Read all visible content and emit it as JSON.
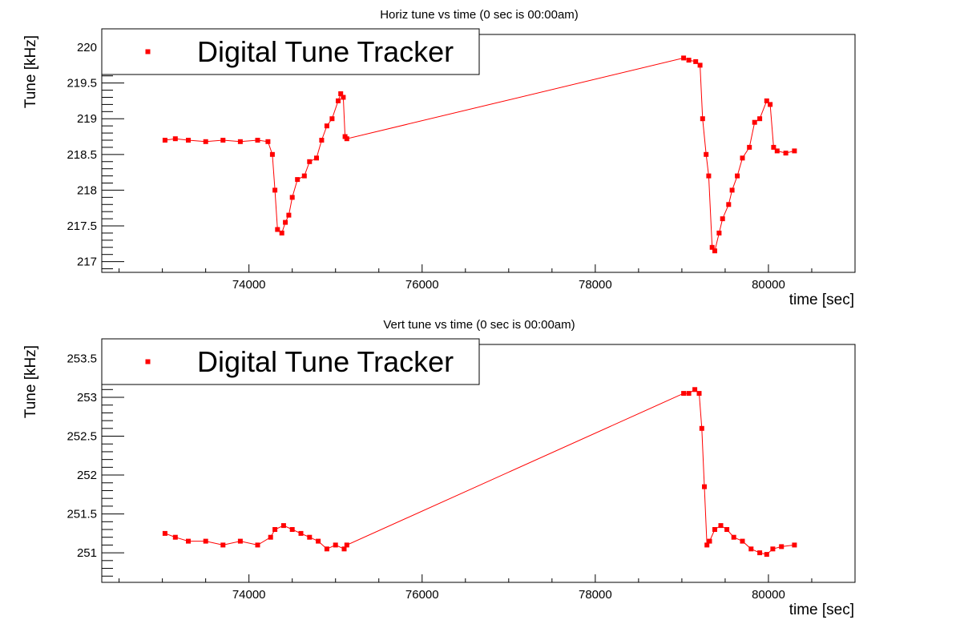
{
  "chart_data": [
    {
      "type": "scatter",
      "title": "Horiz tune vs time (0 sec is 00:00am)",
      "xlabel": "time [sec]",
      "ylabel": "Tune [kHz]",
      "xlim": [
        72300,
        81000
      ],
      "ylim": [
        216.85,
        220.18
      ],
      "x_ticks": [
        74000,
        76000,
        78000,
        80000
      ],
      "y_ticks": [
        217,
        217.5,
        218,
        218.5,
        219,
        219.5,
        220
      ],
      "x_tick_labels": [
        "74000",
        "76000",
        "78000",
        "80000"
      ],
      "y_tick_labels": [
        "217",
        "217.5",
        "218",
        "218.5",
        "219",
        "219.5",
        "220"
      ],
      "legend": {
        "label": "Digital Tune Tracker",
        "position": "top-left"
      },
      "color": "#ff0000",
      "series": [
        {
          "name": "Digital Tune Tracker",
          "x": [
            73030,
            73150,
            73300,
            73500,
            73700,
            73900,
            74100,
            74220,
            74270,
            74300,
            74330,
            74380,
            74420,
            74460,
            74500,
            74560,
            74640,
            74700,
            74780,
            74840,
            74900,
            74960,
            75030,
            75060,
            75090,
            75110,
            75130,
            79020,
            79080,
            79160,
            79210,
            79240,
            79280,
            79310,
            79350,
            79380,
            79430,
            79470,
            79540,
            79580,
            79640,
            79700,
            79780,
            79840,
            79900,
            79980,
            80020,
            80060,
            80100,
            80200,
            80300
          ],
          "y": [
            218.7,
            218.72,
            218.7,
            218.68,
            218.7,
            218.68,
            218.7,
            218.68,
            218.5,
            218.0,
            217.45,
            217.4,
            217.55,
            217.65,
            217.9,
            218.15,
            218.2,
            218.4,
            218.45,
            218.7,
            218.9,
            219.0,
            219.25,
            219.35,
            219.3,
            218.75,
            218.72,
            219.85,
            219.82,
            219.8,
            219.75,
            219.0,
            218.5,
            218.2,
            217.2,
            217.15,
            217.4,
            217.6,
            217.8,
            218.0,
            218.2,
            218.45,
            218.6,
            218.95,
            219.0,
            219.25,
            219.2,
            218.6,
            218.55,
            218.52,
            218.55
          ]
        }
      ]
    },
    {
      "type": "scatter",
      "title": "Vert tune vs time (0 sec is 00:00am)",
      "xlabel": "time [sec]",
      "ylabel": "Tune [kHz]",
      "xlim": [
        72300,
        81000
      ],
      "ylim": [
        250.62,
        253.68
      ],
      "x_ticks": [
        74000,
        76000,
        78000,
        80000
      ],
      "y_ticks": [
        251,
        251.5,
        252,
        252.5,
        253,
        253.5
      ],
      "x_tick_labels": [
        "74000",
        "76000",
        "78000",
        "80000"
      ],
      "y_tick_labels": [
        "251",
        "251.5",
        "252",
        "252.5",
        "253",
        "253.5"
      ],
      "legend": {
        "label": "Digital Tune Tracker",
        "position": "top-left"
      },
      "color": "#ff0000",
      "series": [
        {
          "name": "Digital Tune Tracker",
          "x": [
            73030,
            73150,
            73300,
            73500,
            73700,
            73900,
            74100,
            74250,
            74300,
            74400,
            74500,
            74600,
            74700,
            74800,
            74900,
            75000,
            75100,
            75130,
            79020,
            79080,
            79150,
            79200,
            79230,
            79260,
            79290,
            79320,
            79380,
            79450,
            79520,
            79600,
            79700,
            79800,
            79900,
            79980,
            80050,
            80150,
            80300
          ],
          "y": [
            251.25,
            251.2,
            251.15,
            251.15,
            251.1,
            251.15,
            251.1,
            251.2,
            251.3,
            251.35,
            251.3,
            251.25,
            251.2,
            251.15,
            251.05,
            251.1,
            251.05,
            251.1,
            253.05,
            253.05,
            253.1,
            253.05,
            252.6,
            251.85,
            251.1,
            251.15,
            251.3,
            251.35,
            251.3,
            251.2,
            251.15,
            251.05,
            251.0,
            250.98,
            251.05,
            251.08,
            251.1
          ]
        }
      ]
    }
  ]
}
